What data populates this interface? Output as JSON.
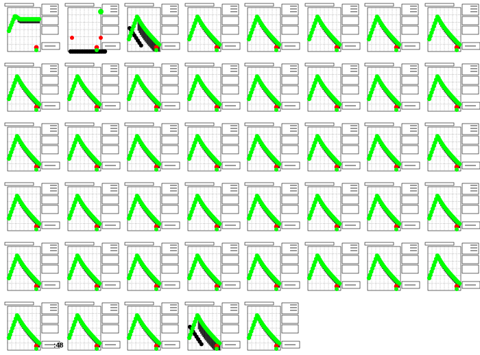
{
  "footer": {
    "count_label": ":48"
  },
  "colors": {
    "highlight": "#00ff00",
    "base": "#000000",
    "marker_red": "#ff0000",
    "background": "#ffffff"
  },
  "chart_data": {
    "type": "scatter",
    "layout": "small-multiples",
    "panel_count": 45,
    "grid": true,
    "panels": [
      {
        "id": 1,
        "variant": "plateau"
      },
      {
        "id": 2,
        "variant": "flat"
      },
      {
        "id": 3,
        "variant": "peak-dark-tail"
      },
      {
        "id": 4,
        "variant": "peak"
      },
      {
        "id": 5,
        "variant": "peak"
      },
      {
        "id": 6,
        "variant": "peak"
      },
      {
        "id": 7,
        "variant": "peak"
      },
      {
        "id": 8,
        "variant": "peak"
      },
      {
        "id": 9,
        "variant": "peak"
      },
      {
        "id": 10,
        "variant": "peak"
      },
      {
        "id": 11,
        "variant": "peak"
      },
      {
        "id": 12,
        "variant": "peak"
      },
      {
        "id": 13,
        "variant": "peak"
      },
      {
        "id": 14,
        "variant": "peak"
      },
      {
        "id": 15,
        "variant": "peak"
      },
      {
        "id": 16,
        "variant": "peak"
      },
      {
        "id": 17,
        "variant": "peak"
      },
      {
        "id": 18,
        "variant": "peak"
      },
      {
        "id": 19,
        "variant": "peak"
      },
      {
        "id": 20,
        "variant": "peak"
      },
      {
        "id": 21,
        "variant": "peak"
      },
      {
        "id": 22,
        "variant": "peak"
      },
      {
        "id": 23,
        "variant": "peak"
      },
      {
        "id": 24,
        "variant": "peak"
      },
      {
        "id": 25,
        "variant": "peak"
      },
      {
        "id": 26,
        "variant": "peak"
      },
      {
        "id": 27,
        "variant": "peak"
      },
      {
        "id": 28,
        "variant": "peak"
      },
      {
        "id": 29,
        "variant": "peak"
      },
      {
        "id": 30,
        "variant": "peak"
      },
      {
        "id": 31,
        "variant": "peak"
      },
      {
        "id": 32,
        "variant": "peak"
      },
      {
        "id": 33,
        "variant": "peak"
      },
      {
        "id": 34,
        "variant": "peak"
      },
      {
        "id": 35,
        "variant": "peak"
      },
      {
        "id": 36,
        "variant": "peak"
      },
      {
        "id": 37,
        "variant": "peak"
      },
      {
        "id": 38,
        "variant": "peak"
      },
      {
        "id": 39,
        "variant": "peak"
      },
      {
        "id": 40,
        "variant": "peak"
      },
      {
        "id": 41,
        "variant": "peak"
      },
      {
        "id": 42,
        "variant": "peak"
      },
      {
        "id": 43,
        "variant": "peak"
      },
      {
        "id": 44,
        "variant": "peak-dark-tail"
      },
      {
        "id": 45,
        "variant": "peak"
      }
    ]
  }
}
